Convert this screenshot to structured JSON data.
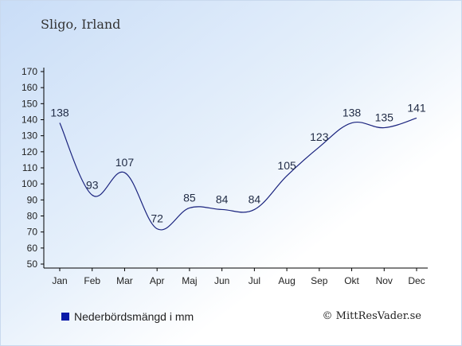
{
  "header": {
    "title": "Sligo, Irland"
  },
  "legend": {
    "label": "Nederbördsmängd i mm",
    "color": "#0a1aa8"
  },
  "footer": {
    "copyright": "© MittResVader.se"
  },
  "colors": {
    "line": "#1a237e",
    "axis": "#000000",
    "text": "#222222",
    "label": "#1f2a44"
  },
  "chart_data": {
    "type": "line",
    "title": "Sligo, Irland",
    "categories": [
      "Jan",
      "Feb",
      "Mar",
      "Apr",
      "Maj",
      "Jun",
      "Jul",
      "Aug",
      "Sep",
      "Okt",
      "Nov",
      "Dec"
    ],
    "series": [
      {
        "name": "Nederbördsmängd i mm",
        "values": [
          138,
          93,
          107,
          72,
          85,
          84,
          84,
          105,
          123,
          138,
          135,
          141
        ]
      }
    ],
    "yticks": [
      50,
      60,
      70,
      80,
      90,
      100,
      110,
      120,
      130,
      140,
      150,
      160,
      170
    ],
    "ylim": [
      50,
      170
    ],
    "grid": false,
    "legend_position": "bottom-left"
  }
}
